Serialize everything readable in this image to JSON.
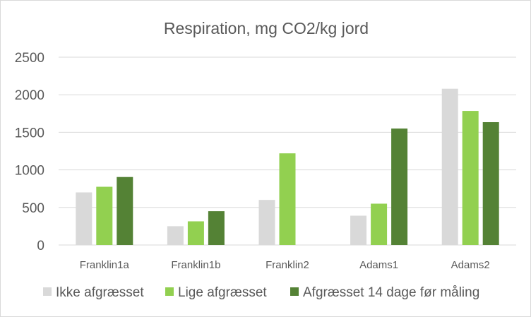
{
  "chart_data": {
    "type": "bar",
    "title": "Respiration, mg CO2/kg jord",
    "xlabel": "",
    "ylabel": "",
    "categories": [
      "Franklin1a",
      "Franklin1b",
      "Franklin2",
      "Adams1",
      "Adams2"
    ],
    "series": [
      {
        "name": "Ikke afgræsset",
        "color": "#d9d9d9",
        "values": [
          700,
          250,
          600,
          390,
          2080
        ]
      },
      {
        "name": "Lige afgræsset",
        "color": "#92d050",
        "values": [
          775,
          315,
          1220,
          550,
          1785
        ]
      },
      {
        "name": "Afgræsset 14 dage før måling",
        "color": "#548235",
        "values": [
          905,
          450,
          0,
          1550,
          1635
        ]
      }
    ],
    "ylim": [
      0,
      2500
    ],
    "yticks": [
      0,
      500,
      1000,
      1500,
      2000,
      2500
    ],
    "grid": true,
    "legend": "bottom"
  }
}
